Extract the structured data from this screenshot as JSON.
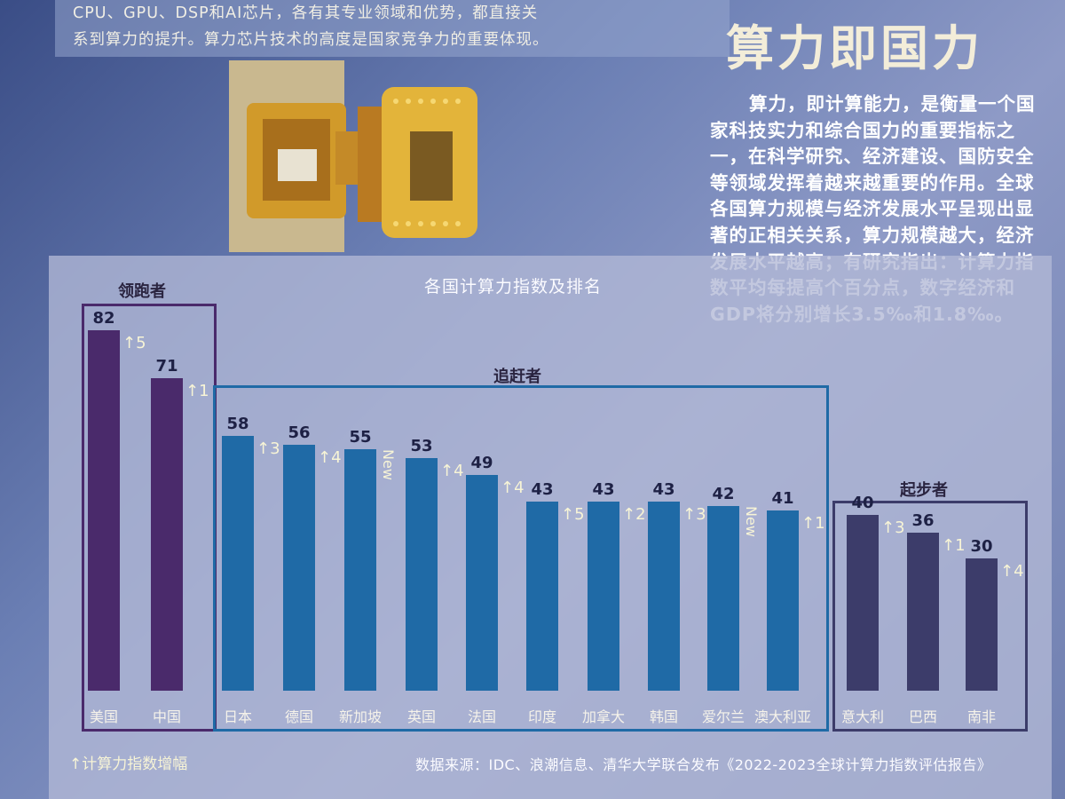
{
  "poster": {
    "top_text_line1": "CPU、GPU、DSP和AI芯片，各有其专业领域和优势，都直接关",
    "top_text_line2": "系到算力的提升。算力芯片技术的高度是国家竞争力的重要体现。",
    "title": "算力即国力",
    "description": "算力，即计算能力，是衡量一个国家科技实力和综合国力的重要指标之一，在科学研究、经济建设、国防安全等领域发挥着越来越重要的作用。全球各国算力规模与经济发展水平呈现出显著的正相关关系，算力规模越大，经济发展水平越高；有研究指出：计算力指数平均每提高个百分点，数字经济和GDP将分别增长3.5‰和1.8‰。"
  },
  "chart_data": {
    "type": "bar",
    "title": "各国计算力指数及排名",
    "groups": [
      {
        "label": "领跑者",
        "color": "#4a2a6b",
        "members": [
          "美国",
          "中国"
        ]
      },
      {
        "label": "追赶者",
        "color": "#1f6aa6",
        "members": [
          "日本",
          "德国",
          "新加坡",
          "英国",
          "法国",
          "印度",
          "加拿大",
          "韩国",
          "爱尔兰",
          "澳大利亚"
        ]
      },
      {
        "label": "起步者",
        "color": "#3c3c6a",
        "members": [
          "意大利",
          "巴西",
          "南非"
        ]
      }
    ],
    "categories": [
      "美国",
      "中国",
      "日本",
      "德国",
      "新加坡",
      "英国",
      "法国",
      "印度",
      "加拿大",
      "韩国",
      "爱尔兰",
      "澳大利亚",
      "意大利",
      "巴西",
      "南非"
    ],
    "values": [
      82,
      71,
      58,
      56,
      55,
      53,
      49,
      43,
      43,
      43,
      42,
      41,
      40,
      36,
      30
    ],
    "changes": [
      "↑5",
      "↑1",
      "↑3",
      "↑4",
      "New",
      "↑4",
      "↑4",
      "↑5",
      "↑2",
      "↑3",
      "New",
      "↑1",
      "↑3",
      "↑1",
      "↑4"
    ],
    "ylim": [
      0,
      82
    ],
    "legend": "↑计算力指数增幅",
    "source": "数据来源：IDC、浪潮信息、清华大学联合发布《2022-2023全球计算力指数评估报告》"
  }
}
